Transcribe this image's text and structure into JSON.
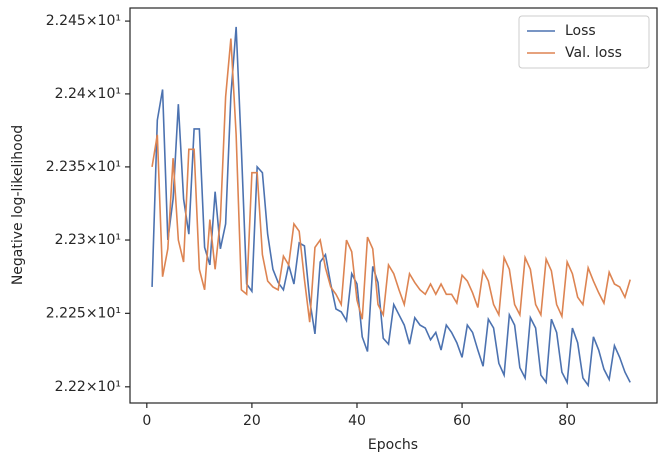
{
  "chart_data": {
    "type": "line",
    "xlabel": "Epochs",
    "ylabel": "Negative log-likelihood",
    "x": [
      1,
      2,
      3,
      4,
      5,
      6,
      7,
      8,
      9,
      10,
      11,
      12,
      13,
      14,
      15,
      16,
      17,
      18,
      19,
      20,
      21,
      22,
      23,
      24,
      25,
      26,
      27,
      28,
      29,
      30,
      31,
      32,
      33,
      34,
      35,
      36,
      37,
      38,
      39,
      40,
      41,
      42,
      43,
      44,
      45,
      46,
      47,
      48,
      49,
      50,
      51,
      52,
      53,
      54,
      55,
      56,
      57,
      58,
      59,
      60,
      61,
      62,
      63,
      64,
      65,
      66,
      67,
      68,
      69,
      70,
      71,
      72,
      73,
      74,
      75,
      76,
      77,
      78,
      79,
      80,
      81,
      82,
      83,
      84,
      85,
      86,
      87,
      88,
      89,
      90,
      91,
      92
    ],
    "series": [
      {
        "name": "Loss",
        "color": "#4c72b0",
        "values": [
          22.268,
          22.382,
          22.403,
          22.3,
          22.328,
          22.393,
          22.328,
          22.304,
          22.376,
          22.376,
          22.295,
          22.283,
          22.333,
          22.294,
          22.311,
          22.399,
          22.446,
          22.362,
          22.27,
          22.265,
          22.35,
          22.346,
          22.304,
          22.28,
          22.271,
          22.266,
          22.283,
          22.27,
          22.298,
          22.296,
          22.259,
          22.236,
          22.285,
          22.29,
          22.27,
          22.253,
          22.251,
          22.245,
          22.277,
          22.27,
          22.234,
          22.224,
          22.282,
          22.271,
          22.233,
          22.229,
          22.256,
          22.249,
          22.242,
          22.229,
          22.247,
          22.242,
          22.24,
          22.232,
          22.237,
          22.225,
          22.242,
          22.237,
          22.23,
          22.22,
          22.242,
          22.237,
          22.225,
          22.214,
          22.246,
          22.24,
          22.216,
          22.208,
          22.249,
          22.242,
          22.213,
          22.206,
          22.247,
          22.24,
          22.208,
          22.203,
          22.246,
          22.237,
          22.21,
          22.203,
          22.24,
          22.23,
          22.206,
          22.201,
          22.234,
          22.225,
          22.212,
          22.205,
          22.228,
          22.22,
          22.21,
          22.203
        ]
      },
      {
        "name": "Val. loss",
        "color": "#dd8452",
        "values": [
          22.35,
          22.372,
          22.275,
          22.294,
          22.356,
          22.3,
          22.285,
          22.362,
          22.362,
          22.28,
          22.266,
          22.314,
          22.28,
          22.314,
          22.398,
          22.438,
          22.372,
          22.266,
          22.263,
          22.346,
          22.346,
          22.29,
          22.272,
          22.268,
          22.266,
          22.289,
          22.283,
          22.311,
          22.306,
          22.273,
          22.244,
          22.295,
          22.3,
          22.281,
          22.268,
          22.263,
          22.256,
          22.3,
          22.292,
          22.259,
          22.246,
          22.302,
          22.294,
          22.256,
          22.249,
          22.283,
          22.277,
          22.266,
          22.256,
          22.277,
          22.271,
          22.266,
          22.263,
          22.27,
          22.263,
          22.27,
          22.263,
          22.263,
          22.257,
          22.276,
          22.272,
          22.264,
          22.254,
          22.279,
          22.272,
          22.256,
          22.249,
          22.288,
          22.28,
          22.256,
          22.249,
          22.288,
          22.28,
          22.256,
          22.249,
          22.287,
          22.279,
          22.256,
          22.248,
          22.285,
          22.277,
          22.261,
          22.256,
          22.281,
          22.272,
          22.264,
          22.257,
          22.278,
          22.27,
          22.268,
          22.261,
          22.273
        ]
      }
    ],
    "xlim": [
      -3.2,
      97.1
    ],
    "xticks": [
      0,
      20,
      40,
      60,
      80
    ],
    "ylim": [
      22.189,
      22.459
    ],
    "ylog": true,
    "yticks": [
      {
        "value": 22.2,
        "label": "2.22×10¹"
      },
      {
        "value": 22.25,
        "label": "2.225×10¹"
      },
      {
        "value": 22.3,
        "label": "2.23×10¹"
      },
      {
        "value": 22.35,
        "label": "2.235×10¹"
      },
      {
        "value": 22.4,
        "label": "2.24×10¹"
      },
      {
        "value": 22.45,
        "label": "2.245×10¹"
      }
    ],
    "grid": false,
    "legend": "upper right"
  }
}
